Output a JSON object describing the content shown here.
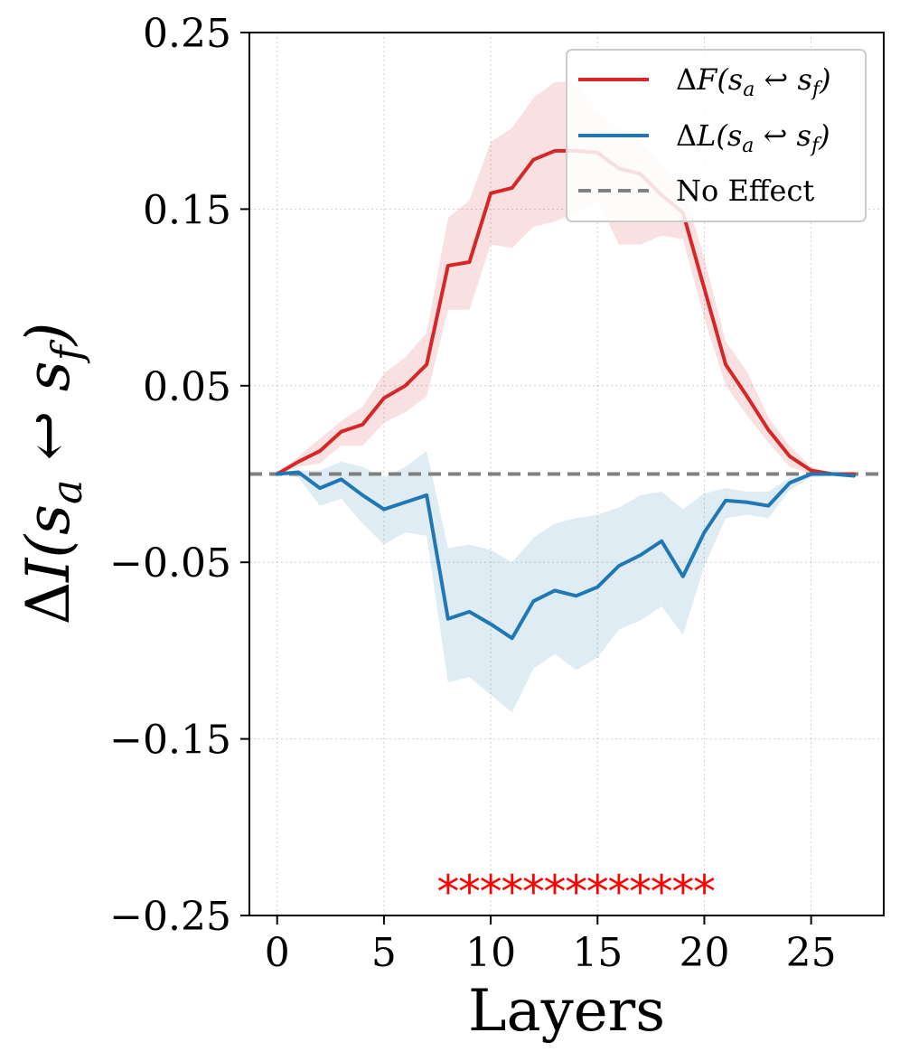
{
  "chart_data": {
    "type": "line",
    "xlabel": "Layers",
    "ylabel": "ΔI(s_a ↩ s_f)",
    "xlim": [
      -1.3,
      28.4
    ],
    "ylim": [
      -0.25,
      0.25
    ],
    "xticks": [
      0,
      5,
      10,
      15,
      20,
      25
    ],
    "yticks": [
      0.25,
      0.15,
      0.05,
      -0.05,
      -0.15,
      -0.25
    ],
    "ytick_labels": [
      "0.25",
      "0.15",
      "0.05",
      "−0.05",
      "−0.15",
      "−0.25"
    ],
    "grid": true,
    "legend_position": "top-right",
    "series": [
      {
        "name": "ΔF(s_a ↩ s_f)",
        "legend_label": "ΔF(sₐ ↩ s_f)",
        "color": "#d62728",
        "x": [
          0,
          1,
          2,
          3,
          4,
          5,
          6,
          7,
          8,
          9,
          10,
          11,
          12,
          13,
          14,
          15,
          16,
          17,
          18,
          19,
          20,
          21,
          22,
          23,
          24,
          25,
          26,
          27
        ],
        "values": [
          0.0,
          0.007,
          0.013,
          0.024,
          0.028,
          0.043,
          0.05,
          0.062,
          0.118,
          0.12,
          0.159,
          0.162,
          0.178,
          0.183,
          0.183,
          0.182,
          0.173,
          0.17,
          0.158,
          0.148,
          0.105,
          0.062,
          0.044,
          0.025,
          0.01,
          0.002,
          0.0,
          0.0
        ],
        "band_upper": [
          0.0,
          0.01,
          0.02,
          0.03,
          0.038,
          0.057,
          0.066,
          0.08,
          0.145,
          0.155,
          0.188,
          0.196,
          0.213,
          0.222,
          0.222,
          0.205,
          0.195,
          0.19,
          0.175,
          0.163,
          0.122,
          0.075,
          0.058,
          0.032,
          0.016,
          0.004,
          0.0,
          0.0
        ],
        "band_lower": [
          0.0,
          0.004,
          0.006,
          0.016,
          0.016,
          0.029,
          0.035,
          0.044,
          0.093,
          0.093,
          0.13,
          0.128,
          0.14,
          0.143,
          0.148,
          0.155,
          0.13,
          0.13,
          0.135,
          0.133,
          0.088,
          0.05,
          0.033,
          0.018,
          0.004,
          0.0,
          0.0,
          0.0
        ]
      },
      {
        "name": "ΔL(s_a ↩ s_f)",
        "legend_label": "ΔL(sₐ ↩ s_f)",
        "color": "#1f77b4",
        "x": [
          0,
          1,
          2,
          3,
          4,
          5,
          6,
          7,
          8,
          9,
          10,
          11,
          12,
          13,
          14,
          15,
          16,
          17,
          18,
          19,
          20,
          21,
          22,
          23,
          24,
          25,
          26,
          27
        ],
        "values": [
          0.0,
          0.001,
          -0.008,
          -0.003,
          -0.012,
          -0.02,
          -0.016,
          -0.012,
          -0.082,
          -0.078,
          -0.085,
          -0.093,
          -0.072,
          -0.066,
          -0.069,
          -0.064,
          -0.052,
          -0.046,
          -0.038,
          -0.058,
          -0.033,
          -0.015,
          -0.016,
          -0.018,
          -0.005,
          0.0,
          0.0,
          -0.001
        ],
        "band_upper": [
          0.0,
          0.002,
          0.002,
          0.007,
          0.004,
          -0.002,
          0.004,
          0.013,
          -0.042,
          -0.04,
          -0.043,
          -0.05,
          -0.036,
          -0.028,
          -0.025,
          -0.023,
          -0.019,
          -0.012,
          -0.01,
          -0.02,
          -0.011,
          -0.008,
          -0.01,
          -0.01,
          -0.002,
          0.0,
          0.0,
          0.0
        ],
        "band_lower": [
          0.0,
          -0.002,
          -0.018,
          -0.014,
          -0.028,
          -0.04,
          -0.033,
          -0.035,
          -0.118,
          -0.115,
          -0.125,
          -0.135,
          -0.11,
          -0.102,
          -0.111,
          -0.104,
          -0.088,
          -0.083,
          -0.075,
          -0.091,
          -0.052,
          -0.025,
          -0.023,
          -0.025,
          -0.009,
          -0.002,
          -0.001,
          -0.002
        ]
      }
    ],
    "reference_line": {
      "name": "No Effect",
      "y": 0.0,
      "color": "#808080",
      "style": "dashed"
    },
    "significance_markers": {
      "symbol": "*",
      "y": -0.233,
      "x": [
        8,
        9,
        10,
        11,
        12,
        13,
        14,
        15,
        16,
        17,
        18,
        19,
        20
      ],
      "color": "#ff0000"
    }
  }
}
